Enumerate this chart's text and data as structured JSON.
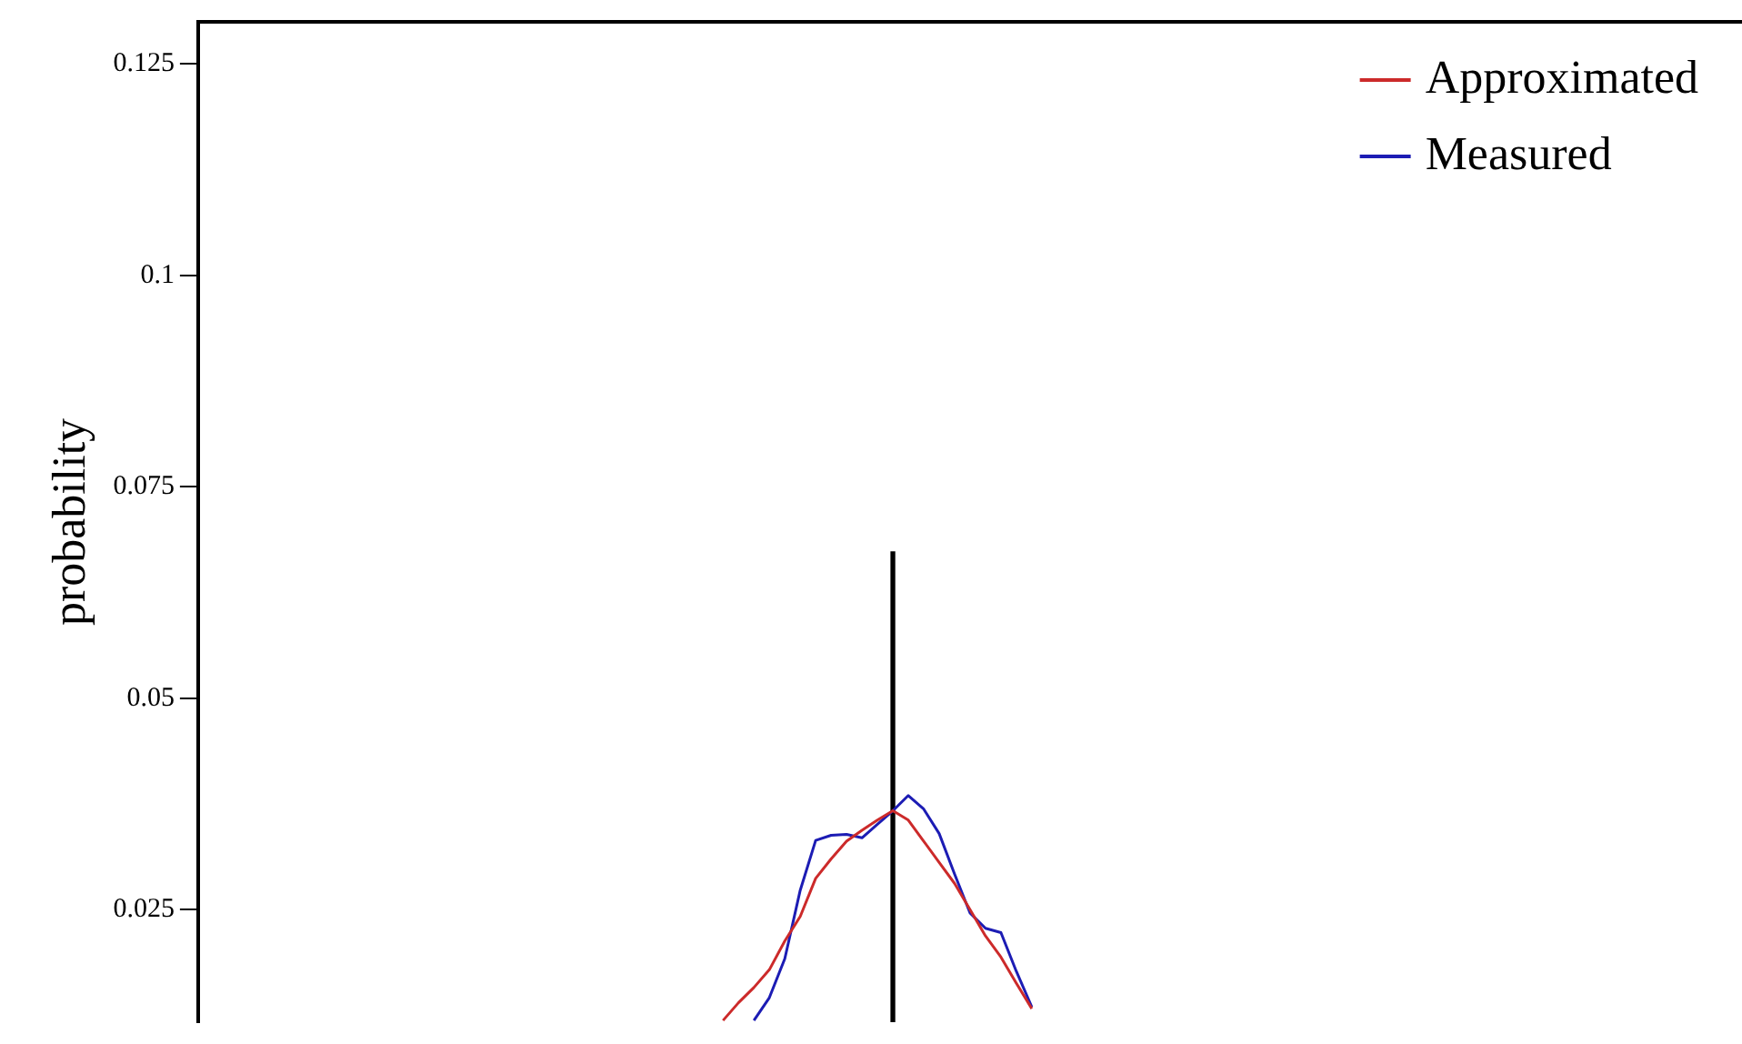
{
  "chart_data": {
    "type": "line",
    "ylabel": "probability",
    "ylim": [
      0.0117,
      0.13
    ],
    "yticks": [
      0.025,
      0.05,
      0.075,
      0.1,
      0.125
    ],
    "tick_labels": "y",
    "grid": false,
    "legend": "top right",
    "marker": "none",
    "line_style": "solid",
    "categories": [
      null,
      null,
      null,
      null,
      null,
      null,
      null,
      null,
      null,
      null,
      null,
      null,
      null,
      null,
      null,
      null,
      null,
      null,
      null,
      null,
      null,
      null,
      null,
      null,
      null,
      null,
      null,
      null,
      null,
      null,
      null,
      null,
      null,
      null,
      null,
      null,
      null,
      null,
      null,
      null,
      null,
      null,
      null,
      null,
      null,
      null,
      null,
      null,
      null,
      null,
      null,
      null,
      null,
      null,
      null,
      null,
      null,
      null,
      null,
      null,
      null,
      null,
      null,
      null,
      null,
      null,
      null,
      null,
      null,
      null,
      null,
      null,
      null,
      null,
      null,
      null,
      null,
      null,
      null,
      null,
      null,
      null,
      null,
      null,
      null,
      null,
      null,
      null,
      null,
      null,
      null,
      null,
      null,
      null,
      null,
      null,
      null,
      null,
      null,
      null,
      null
    ],
    "series": [
      {
        "name": "Approximated",
        "color": "#cc2a2a",
        "values": [
          null,
          null,
          null,
          null,
          null,
          null,
          null,
          null,
          null,
          null,
          null,
          null,
          null,
          null,
          null,
          null,
          null,
          null,
          null,
          null,
          null,
          null,
          null,
          null,
          null,
          null,
          null,
          null,
          null,
          null,
          null,
          null,
          null,
          null,
          0.0119,
          0.014,
          0.0158,
          0.0179,
          0.0213,
          0.0242,
          0.0287,
          0.031,
          0.0331,
          0.0344,
          0.0356,
          0.0367,
          0.0356,
          0.0331,
          0.0306,
          0.0281,
          0.025,
          0.0219,
          0.0194,
          0.0163,
          0.0133,
          null,
          null,
          null,
          null,
          null,
          null,
          null,
          null,
          null,
          null,
          null,
          null,
          null,
          null,
          null,
          null,
          null,
          null,
          null,
          null,
          null,
          null,
          null,
          null,
          null,
          null,
          null,
          null,
          null,
          null,
          null,
          null,
          null,
          null,
          null,
          null,
          null,
          null,
          null,
          null,
          null,
          null,
          null,
          null,
          null,
          null
        ]
      },
      {
        "name": "Measured",
        "color": "#1c1cb4",
        "values": [
          null,
          null,
          null,
          null,
          null,
          null,
          null,
          null,
          null,
          null,
          null,
          null,
          null,
          null,
          null,
          null,
          null,
          null,
          null,
          null,
          null,
          null,
          null,
          null,
          null,
          null,
          null,
          null,
          null,
          null,
          null,
          null,
          null,
          null,
          null,
          null,
          0.0119,
          0.0146,
          0.0192,
          0.0273,
          0.0332,
          0.0338,
          0.0339,
          0.0335,
          0.0351,
          0.0367,
          0.0385,
          0.0369,
          0.034,
          0.0292,
          0.0246,
          0.0228,
          0.0223,
          0.0177,
          0.0135,
          null,
          null,
          null,
          null,
          null,
          null,
          null,
          null,
          null,
          null,
          null,
          null,
          null,
          null,
          null,
          null,
          null,
          null,
          null,
          null,
          null,
          null,
          null,
          null,
          null,
          null,
          null,
          null,
          null,
          null,
          null,
          null,
          null,
          null,
          null,
          null,
          null,
          null,
          null,
          null,
          null,
          null,
          null,
          null,
          null,
          null
        ]
      },
      {
        "type": "bar",
        "color": "#000000",
        "values": [
          null,
          null,
          null,
          null,
          null,
          null,
          null,
          null,
          null,
          null,
          null,
          null,
          null,
          null,
          null,
          null,
          null,
          null,
          null,
          null,
          null,
          null,
          null,
          null,
          null,
          null,
          null,
          null,
          null,
          null,
          null,
          null,
          null,
          null,
          null,
          null,
          null,
          null,
          null,
          null,
          null,
          null,
          null,
          null,
          null,
          0.0673,
          null,
          null,
          null,
          null,
          null,
          null,
          null,
          null,
          null,
          null,
          null,
          null,
          null,
          null,
          null,
          null,
          null,
          null,
          null,
          null,
          null,
          null,
          null,
          null,
          null,
          null,
          null,
          null,
          null,
          null,
          null,
          null,
          null,
          null,
          null,
          null,
          null,
          null,
          null,
          null,
          null,
          null,
          null,
          null,
          null,
          null,
          null,
          null,
          null,
          null,
          null,
          null,
          null,
          null,
          null
        ]
      }
    ]
  }
}
